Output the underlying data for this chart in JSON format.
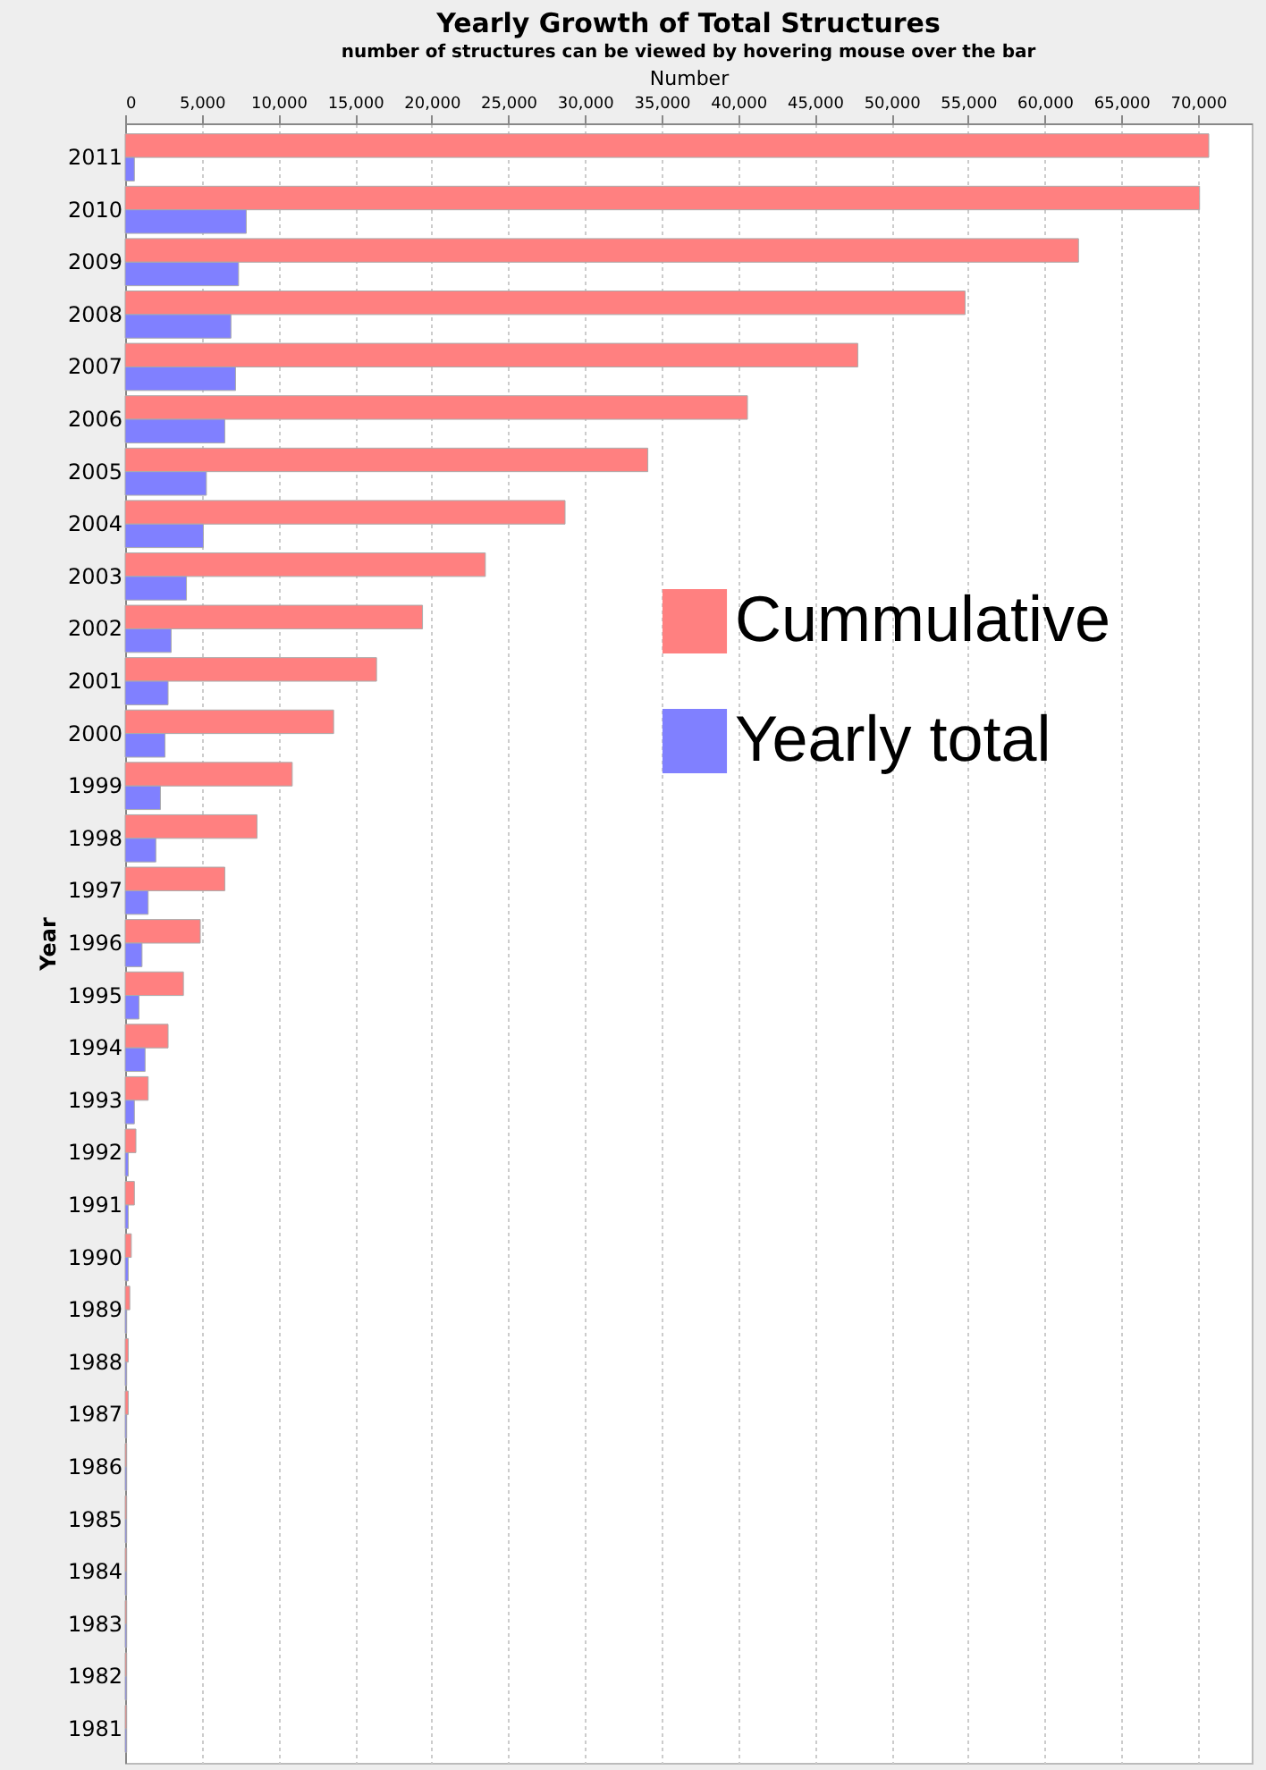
{
  "chart_data": {
    "type": "bar",
    "orientation": "horizontal",
    "title": "Yearly Growth of Total Structures",
    "subtitle": "number of structures can be viewed by hovering mouse over the bar",
    "xlabel": "Number",
    "ylabel": "Year",
    "categories": [
      "2011",
      "2010",
      "2009",
      "2008",
      "2007",
      "2006",
      "2005",
      "2004",
      "2003",
      "2002",
      "2001",
      "2000",
      "1999",
      "1998",
      "1997",
      "1996",
      "1995",
      "1994",
      "1993",
      "1992",
      "1991",
      "1990",
      "1989",
      "1988",
      "1987",
      "1986",
      "1985",
      "1984",
      "1983",
      "1982",
      "1981"
    ],
    "series": [
      {
        "name": "Cummulative",
        "color": "#ff8080",
        "values": [
          70700,
          70100,
          62200,
          54800,
          47800,
          40600,
          34100,
          28700,
          23500,
          19400,
          16400,
          13600,
          10900,
          8600,
          6500,
          4900,
          3800,
          2800,
          1500,
          700,
          600,
          400,
          300,
          200,
          200,
          100,
          100,
          100,
          100,
          100,
          100
        ]
      },
      {
        "name": "Yearly total",
        "color": "#8080ff",
        "values": [
          600,
          7900,
          7400,
          6900,
          7200,
          6500,
          5300,
          5100,
          4000,
          3000,
          2800,
          2600,
          2300,
          2000,
          1500,
          1100,
          900,
          1300,
          600,
          200,
          200,
          200,
          100,
          100,
          100,
          100,
          100,
          100,
          100,
          100,
          100
        ]
      }
    ],
    "xlim": [
      0,
      73500
    ],
    "xticks": [
      0,
      {
        "value": 5000,
        "label": "5,000"
      },
      {
        "value": 10000,
        "label": "10,000"
      },
      {
        "value": 15000,
        "label": "15,000"
      },
      {
        "value": 20000,
        "label": "20,000"
      },
      {
        "value": 25000,
        "label": "25,000"
      },
      {
        "value": 30000,
        "label": "30,000"
      },
      {
        "value": 35000,
        "label": "35,000"
      },
      {
        "value": 40000,
        "label": "40,000"
      },
      {
        "value": 45000,
        "label": "45,000"
      },
      {
        "value": 50000,
        "label": "50,000"
      },
      {
        "value": 55000,
        "label": "55,000"
      },
      {
        "value": 60000,
        "label": "60,000"
      },
      {
        "value": 65000,
        "label": "65,000"
      },
      {
        "value": 70000,
        "label": "70,000"
      }
    ],
    "grid": true,
    "legend": "right"
  }
}
